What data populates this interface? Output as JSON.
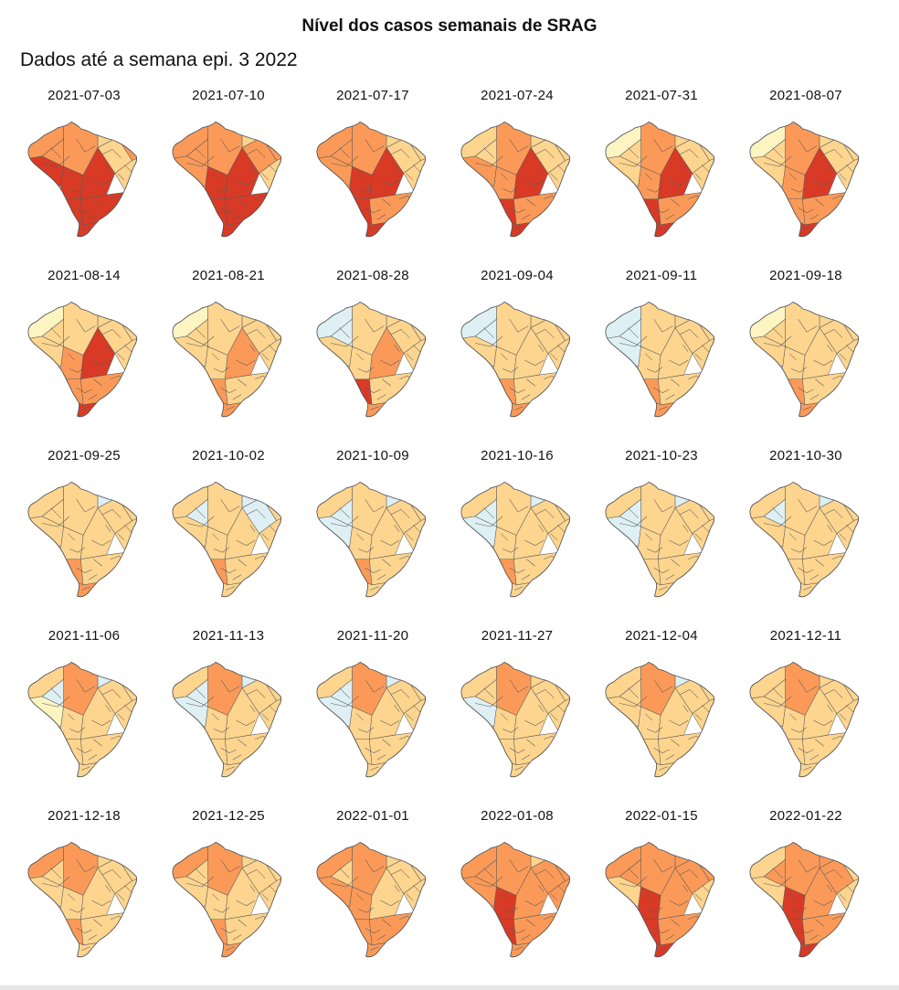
{
  "title": "Nível dos casos semanais de SRAG",
  "subtitle": "Dados até a semana epi. 3 2022",
  "levels": {
    "very_low": "#dff0f5",
    "low": "#fcf5c2",
    "medium": "#fdd58f",
    "high": "#fb9a58",
    "very_high": "#d93a26"
  },
  "panels": [
    {
      "date": "2021-07-03",
      "levels": [
        "high",
        "high",
        "very_high",
        "high",
        "medium",
        "high",
        "medium",
        "medium",
        "very_high",
        "very_high",
        "very_high",
        "very_high",
        "very_high",
        "high"
      ]
    },
    {
      "date": "2021-07-10",
      "levels": [
        "high",
        "high",
        "high",
        "high",
        "medium",
        "high",
        "high",
        "medium",
        "very_high",
        "very_high",
        "very_high",
        "very_high",
        "very_high",
        "high"
      ]
    },
    {
      "date": "2021-07-17",
      "levels": [
        "high",
        "high",
        "high",
        "high",
        "medium",
        "medium",
        "medium",
        "medium",
        "very_high",
        "very_high",
        "very_high",
        "high",
        "very_high",
        "high"
      ]
    },
    {
      "date": "2021-07-24",
      "levels": [
        "medium",
        "high",
        "high",
        "medium",
        "medium",
        "medium",
        "medium",
        "medium",
        "high",
        "very_high",
        "very_high",
        "high",
        "very_high",
        "high"
      ]
    },
    {
      "date": "2021-07-31",
      "levels": [
        "low",
        "high",
        "medium",
        "medium",
        "medium",
        "medium",
        "medium",
        "medium",
        "high",
        "very_high",
        "very_high",
        "high",
        "very_high",
        "high"
      ]
    },
    {
      "date": "2021-08-07",
      "levels": [
        "low",
        "high",
        "medium",
        "medium",
        "medium",
        "medium",
        "medium",
        "medium",
        "high",
        "very_high",
        "high",
        "high",
        "very_high",
        "high"
      ]
    },
    {
      "date": "2021-08-14",
      "levels": [
        "low",
        "medium",
        "medium",
        "medium",
        "medium",
        "medium",
        "medium",
        "medium",
        "high",
        "very_high",
        "high",
        "high",
        "very_high",
        "high"
      ]
    },
    {
      "date": "2021-08-21",
      "levels": [
        "low",
        "medium",
        "medium",
        "medium",
        "medium",
        "medium",
        "medium",
        "medium",
        "medium",
        "high",
        "high",
        "medium",
        "high",
        "medium"
      ]
    },
    {
      "date": "2021-08-28",
      "levels": [
        "very_low",
        "medium",
        "medium",
        "very_low",
        "medium",
        "medium",
        "medium",
        "medium",
        "medium",
        "high",
        "very_high",
        "medium",
        "high",
        "medium"
      ]
    },
    {
      "date": "2021-09-04",
      "levels": [
        "very_low",
        "medium",
        "medium",
        "very_low",
        "medium",
        "medium",
        "medium",
        "medium",
        "medium",
        "medium",
        "high",
        "medium",
        "high",
        "medium"
      ]
    },
    {
      "date": "2021-09-11",
      "levels": [
        "very_low",
        "medium",
        "very_low",
        "very_low",
        "medium",
        "medium",
        "medium",
        "medium",
        "medium",
        "medium",
        "high",
        "medium",
        "high",
        "medium"
      ]
    },
    {
      "date": "2021-09-18",
      "levels": [
        "low",
        "medium",
        "medium",
        "medium",
        "medium",
        "medium",
        "medium",
        "medium",
        "medium",
        "medium",
        "high",
        "medium",
        "high",
        "medium"
      ]
    },
    {
      "date": "2021-09-25",
      "levels": [
        "medium",
        "medium",
        "medium",
        "medium",
        "very_low",
        "medium",
        "medium",
        "medium",
        "medium",
        "medium",
        "high",
        "medium",
        "high",
        "medium"
      ]
    },
    {
      "date": "2021-10-02",
      "levels": [
        "medium",
        "medium",
        "medium",
        "very_low",
        "very_low",
        "medium",
        "very_low",
        "medium",
        "medium",
        "medium",
        "high",
        "medium",
        "medium",
        "medium"
      ]
    },
    {
      "date": "2021-10-09",
      "levels": [
        "medium",
        "medium",
        "very_low",
        "very_low",
        "very_low",
        "medium",
        "medium",
        "medium",
        "medium",
        "medium",
        "high",
        "medium",
        "medium",
        "medium"
      ]
    },
    {
      "date": "2021-10-16",
      "levels": [
        "medium",
        "medium",
        "very_low",
        "very_low",
        "very_low",
        "medium",
        "medium",
        "medium",
        "medium",
        "medium",
        "high",
        "medium",
        "medium",
        "medium"
      ]
    },
    {
      "date": "2021-10-23",
      "levels": [
        "medium",
        "medium",
        "very_low",
        "very_low",
        "very_low",
        "medium",
        "medium",
        "medium",
        "medium",
        "medium",
        "medium",
        "medium",
        "medium",
        "medium"
      ]
    },
    {
      "date": "2021-10-30",
      "levels": [
        "medium",
        "medium",
        "medium",
        "very_low",
        "very_low",
        "medium",
        "medium",
        "medium",
        "medium",
        "medium",
        "medium",
        "medium",
        "medium",
        "medium"
      ]
    },
    {
      "date": "2021-11-06",
      "levels": [
        "medium",
        "high",
        "low",
        "very_low",
        "very_low",
        "medium",
        "medium",
        "medium",
        "medium",
        "medium",
        "medium",
        "medium",
        "medium",
        "medium"
      ]
    },
    {
      "date": "2021-11-13",
      "levels": [
        "medium",
        "high",
        "very_low",
        "very_low",
        "very_low",
        "medium",
        "medium",
        "medium",
        "medium",
        "medium",
        "medium",
        "medium",
        "medium",
        "medium"
      ]
    },
    {
      "date": "2021-11-20",
      "levels": [
        "medium",
        "high",
        "very_low",
        "very_low",
        "very_low",
        "medium",
        "medium",
        "medium",
        "medium",
        "medium",
        "medium",
        "medium",
        "medium",
        "medium"
      ]
    },
    {
      "date": "2021-11-27",
      "levels": [
        "medium",
        "high",
        "very_low",
        "medium",
        "medium",
        "medium",
        "medium",
        "medium",
        "medium",
        "medium",
        "medium",
        "medium",
        "medium",
        "medium"
      ]
    },
    {
      "date": "2021-12-04",
      "levels": [
        "medium",
        "high",
        "medium",
        "medium",
        "very_low",
        "medium",
        "medium",
        "medium",
        "medium",
        "medium",
        "medium",
        "medium",
        "medium",
        "medium"
      ]
    },
    {
      "date": "2021-12-11",
      "levels": [
        "medium",
        "high",
        "medium",
        "medium",
        "medium",
        "medium",
        "medium",
        "medium",
        "medium",
        "medium",
        "medium",
        "medium",
        "medium",
        "medium"
      ]
    },
    {
      "date": "2021-12-18",
      "levels": [
        "high",
        "high",
        "medium",
        "medium",
        "medium",
        "medium",
        "medium",
        "medium",
        "medium",
        "medium",
        "high",
        "medium",
        "medium",
        "medium"
      ]
    },
    {
      "date": "2021-12-25",
      "levels": [
        "high",
        "high",
        "medium",
        "medium",
        "medium",
        "medium",
        "medium",
        "medium",
        "medium",
        "medium",
        "high",
        "medium",
        "high",
        "medium"
      ]
    },
    {
      "date": "2022-01-01",
      "levels": [
        "high",
        "high",
        "high",
        "medium",
        "medium",
        "medium",
        "medium",
        "medium",
        "high",
        "medium",
        "high",
        "high",
        "high",
        "medium"
      ]
    },
    {
      "date": "2022-01-08",
      "levels": [
        "high",
        "high",
        "high",
        "high",
        "medium",
        "high",
        "high",
        "high",
        "very_high",
        "high",
        "very_high",
        "high",
        "high",
        "high"
      ]
    },
    {
      "date": "2022-01-15",
      "levels": [
        "high",
        "high",
        "medium",
        "high",
        "high",
        "high",
        "high",
        "medium",
        "very_high",
        "high",
        "very_high",
        "high",
        "very_high",
        "high"
      ]
    },
    {
      "date": "2022-01-22",
      "levels": [
        "medium",
        "high",
        "medium",
        "high",
        "high",
        "medium",
        "high",
        "medium",
        "very_high",
        "high",
        "very_high",
        "high",
        "very_high",
        "high"
      ]
    }
  ]
}
